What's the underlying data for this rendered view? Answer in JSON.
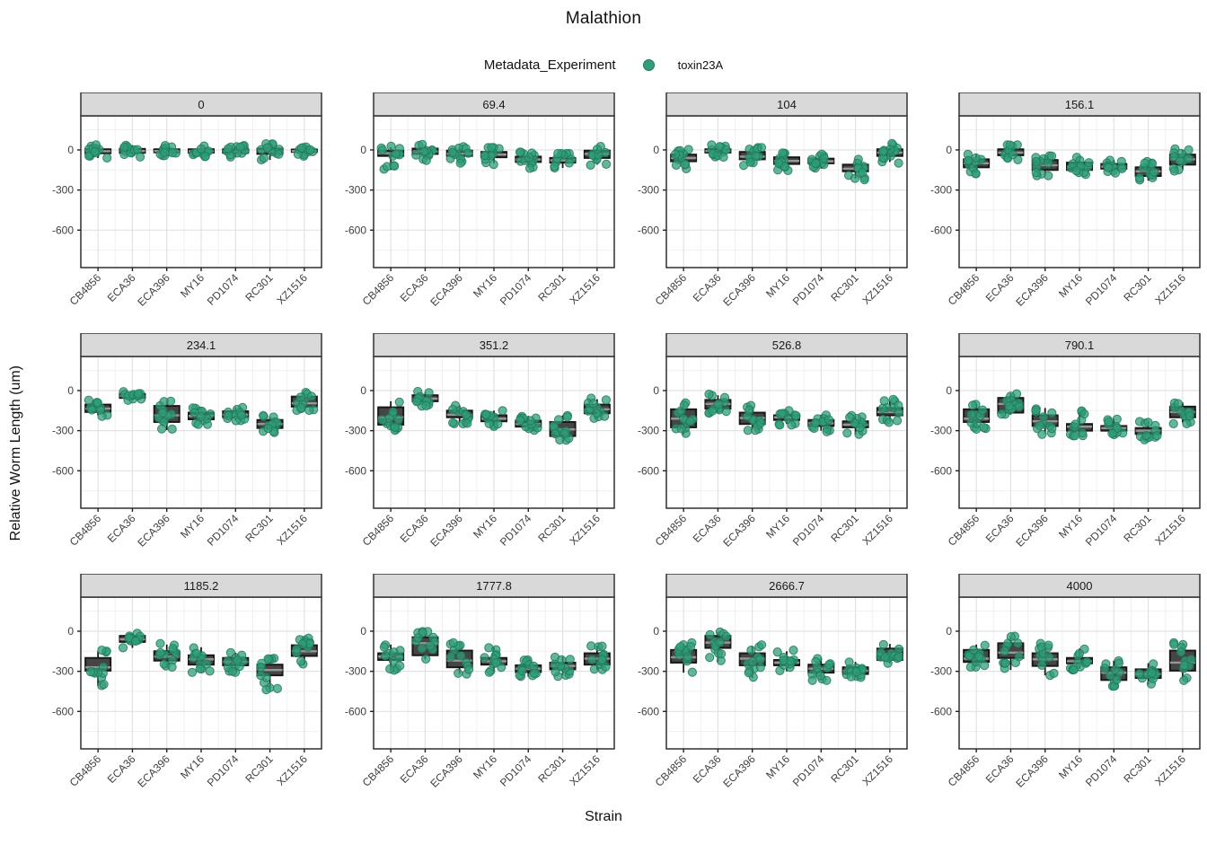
{
  "title": "Malathion",
  "legend": {
    "title": "Metadata_Experiment",
    "entries": [
      {
        "label": "toxin23A",
        "color": "#2f9e77"
      }
    ]
  },
  "axes": {
    "x_title": "Strain",
    "y_title": "Relative Worm Length (um)"
  },
  "colors": {
    "point_fill": "#2f9e77",
    "point_stroke": "#20795a",
    "box_fill": "#454545",
    "box_stroke": "#191919",
    "median_line": "#969696",
    "strip_fill": "#d9d9d9",
    "strip_border": "#3c3c3c",
    "panel_border": "#3c3c3c",
    "grid_major": "#e2e2e2",
    "grid_minor": "#f0f0f0",
    "axis_text": "#404040",
    "tick_mark": "#222222"
  },
  "chart_data": {
    "type": "boxplot",
    "overlay": "jittered points (single group: toxin23A)",
    "title": "Malathion",
    "xlabel": "Strain",
    "ylabel": "Relative Worm Length (um)",
    "legend_position": "top",
    "grid": "major+minor",
    "categories": [
      "CB4856",
      "ECA36",
      "ECA396",
      "MY16",
      "PD1074",
      "RC301",
      "XZ1516"
    ],
    "yticks": [
      0,
      -300,
      -600
    ],
    "yticks_minor": [
      150,
      -150,
      -450,
      -750
    ],
    "ylim_top": 255,
    "ylim_bottom": -880,
    "facet_variable": "dose",
    "box_format": [
      "whisker_low",
      "q1",
      "median",
      "q3",
      "whisker_high"
    ],
    "facets": [
      {
        "label": "0",
        "boxes": [
          [
            -60,
            -25,
            -10,
            5,
            30
          ],
          [
            -55,
            -22,
            -8,
            8,
            35
          ],
          [
            -45,
            -18,
            -8,
            5,
            25
          ],
          [
            -50,
            -20,
            -10,
            5,
            30
          ],
          [
            -55,
            -22,
            -10,
            5,
            25
          ],
          [
            -75,
            -30,
            -10,
            10,
            40
          ],
          [
            -40,
            -15,
            -8,
            3,
            20
          ]
        ]
      },
      {
        "label": "69.4",
        "boxes": [
          [
            -150,
            -45,
            -25,
            -5,
            20
          ],
          [
            -70,
            -30,
            -12,
            10,
            35
          ],
          [
            -90,
            -45,
            -28,
            -5,
            25
          ],
          [
            -100,
            -55,
            -35,
            -15,
            10
          ],
          [
            -130,
            -90,
            -72,
            -50,
            -25
          ],
          [
            -135,
            -95,
            -78,
            -60,
            -35
          ],
          [
            -110,
            -60,
            -30,
            -5,
            30
          ]
        ]
      },
      {
        "label": "104",
        "boxes": [
          [
            -145,
            -85,
            -60,
            -35,
            -5
          ],
          [
            -55,
            -20,
            -8,
            5,
            30
          ],
          [
            -120,
            -70,
            -50,
            -15,
            10
          ],
          [
            -150,
            -105,
            -82,
            -55,
            -25
          ],
          [
            -140,
            -100,
            -85,
            -65,
            -40
          ],
          [
            -215,
            -160,
            -140,
            -110,
            -70
          ],
          [
            -90,
            -45,
            -20,
            5,
            40
          ]
        ]
      },
      {
        "label": "156.1",
        "boxes": [
          [
            -170,
            -130,
            -100,
            -70,
            -30
          ],
          [
            -75,
            -40,
            -20,
            5,
            30
          ],
          [
            -185,
            -150,
            -115,
            -75,
            -40
          ],
          [
            -185,
            -150,
            -125,
            -95,
            -55
          ],
          [
            -165,
            -140,
            -125,
            -105,
            -75
          ],
          [
            -230,
            -195,
            -160,
            -130,
            -95
          ],
          [
            -150,
            -110,
            -70,
            -35,
            0
          ]
        ]
      },
      {
        "label": "234.1",
        "boxes": [
          [
            -185,
            -160,
            -135,
            -105,
            -70
          ],
          [
            -75,
            -55,
            -40,
            -25,
            -8
          ],
          [
            -295,
            -235,
            -185,
            -115,
            -75
          ],
          [
            -245,
            -215,
            -190,
            -165,
            -130
          ],
          [
            -225,
            -200,
            -180,
            -155,
            -125
          ],
          [
            -305,
            -280,
            -250,
            -220,
            -195
          ],
          [
            -140,
            -120,
            -95,
            -45,
            -10
          ]
        ]
      },
      {
        "label": "351.2",
        "boxes": [
          [
            -290,
            -255,
            -200,
            -125,
            -80
          ],
          [
            -110,
            -80,
            -60,
            -35,
            -15
          ],
          [
            -240,
            -200,
            -180,
            -150,
            -110
          ],
          [
            -260,
            -230,
            -210,
            -185,
            -150
          ],
          [
            -300,
            -270,
            -250,
            -225,
            -190
          ],
          [
            -380,
            -340,
            -290,
            -235,
            -185
          ],
          [
            -210,
            -170,
            -140,
            -105,
            -65
          ]
        ]
      },
      {
        "label": "526.8",
        "boxes": [
          [
            -330,
            -275,
            -210,
            -140,
            -90
          ],
          [
            -160,
            -135,
            -100,
            -70,
            -35
          ],
          [
            -290,
            -250,
            -205,
            -165,
            -120
          ],
          [
            -250,
            -220,
            -200,
            -185,
            -150
          ],
          [
            -300,
            -265,
            -245,
            -220,
            -180
          ],
          [
            -330,
            -275,
            -255,
            -230,
            -195
          ],
          [
            -230,
            -185,
            -160,
            -130,
            -75
          ]
        ]
      },
      {
        "label": "790.1",
        "boxes": [
          [
            -280,
            -235,
            -210,
            -140,
            -100
          ],
          [
            -180,
            -165,
            -100,
            -55,
            -20
          ],
          [
            -320,
            -265,
            -230,
            -185,
            -130
          ],
          [
            -330,
            -300,
            -270,
            -250,
            -160
          ],
          [
            -330,
            -300,
            -280,
            -265,
            -210
          ],
          [
            -360,
            -325,
            -300,
            -280,
            -230
          ],
          [
            -240,
            -200,
            -160,
            -120,
            -90
          ]
        ]
      },
      {
        "label": "1185.2",
        "boxes": [
          [
            -410,
            -295,
            -270,
            -200,
            -150
          ],
          [
            -125,
            -80,
            -60,
            -35,
            -15
          ],
          [
            -260,
            -220,
            -190,
            -150,
            -100
          ],
          [
            -300,
            -250,
            -210,
            -180,
            -120
          ],
          [
            -300,
            -255,
            -230,
            -200,
            -160
          ],
          [
            -430,
            -330,
            -290,
            -250,
            -200
          ],
          [
            -250,
            -185,
            -150,
            -105,
            -60
          ]
        ]
      },
      {
        "label": "1777.8",
        "boxes": [
          [
            -290,
            -215,
            -190,
            -165,
            -100
          ],
          [
            -210,
            -180,
            -90,
            -45,
            -10
          ],
          [
            -320,
            -270,
            -220,
            -145,
            -95
          ],
          [
            -300,
            -250,
            -225,
            -200,
            -120
          ],
          [
            -340,
            -305,
            -280,
            -255,
            -215
          ],
          [
            -330,
            -285,
            -260,
            -235,
            -190
          ],
          [
            -290,
            -250,
            -205,
            -165,
            -110
          ]
        ]
      },
      {
        "label": "2666.7",
        "boxes": [
          [
            -310,
            -235,
            -195,
            -140,
            -95
          ],
          [
            -230,
            -125,
            -85,
            -35,
            -5
          ],
          [
            -350,
            -255,
            -205,
            -165,
            -110
          ],
          [
            -300,
            -255,
            -235,
            -215,
            -150
          ],
          [
            -360,
            -310,
            -280,
            -250,
            -200
          ],
          [
            -340,
            -320,
            -295,
            -270,
            -230
          ],
          [
            -240,
            -215,
            -170,
            -130,
            -95
          ]
        ]
      },
      {
        "label": "4000",
        "boxes": [
          [
            -260,
            -230,
            -205,
            -140,
            -100
          ],
          [
            -290,
            -200,
            -160,
            -90,
            -35
          ],
          [
            -330,
            -260,
            -210,
            -165,
            -90
          ],
          [
            -280,
            -240,
            -225,
            -200,
            -130
          ],
          [
            -420,
            -365,
            -310,
            -270,
            -220
          ],
          [
            -400,
            -350,
            -320,
            -285,
            -240
          ],
          [
            -360,
            -295,
            -235,
            -145,
            -95
          ]
        ]
      }
    ],
    "points_per_group": 12
  }
}
